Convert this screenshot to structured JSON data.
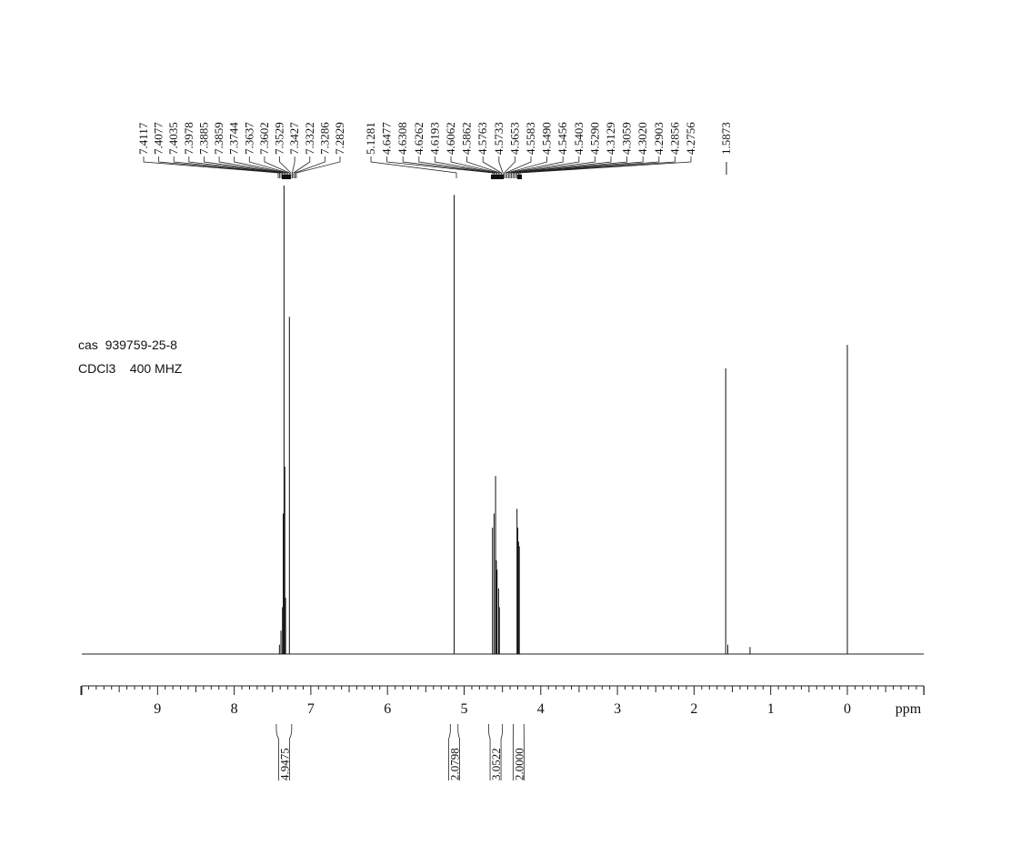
{
  "info": {
    "line1": "cas  939759-25-8",
    "line2": "CDCl3    400 MHZ"
  },
  "chart_data": {
    "type": "line",
    "title": "",
    "xlabel": "ppm",
    "ylabel": "",
    "xlim": [
      10.0,
      -1.0
    ],
    "x_reversed": true,
    "grid": false,
    "legend": "none",
    "xticks": [
      "9",
      "8",
      "7",
      "6",
      "5",
      "4",
      "3",
      "2",
      "1",
      "0"
    ],
    "peak_labels": {
      "group1": [
        "7.4117",
        "7.4077",
        "7.4035",
        "7.3978",
        "7.3885",
        "7.3859",
        "7.3744",
        "7.3637",
        "7.3602",
        "7.3529",
        "7.3427",
        "7.3322",
        "7.3286",
        "7.2829"
      ],
      "group2": [
        "5.1281",
        "4.6477",
        "4.6308",
        "4.6262",
        "4.6193",
        "4.6062",
        "4.5862",
        "4.5763",
        "4.5733",
        "4.5653",
        "4.5583",
        "4.5490",
        "4.5456",
        "4.5403",
        "4.5290",
        "4.3129",
        "4.3059",
        "4.3020",
        "4.2903",
        "4.2856",
        "4.2756"
      ],
      "group3": [
        "1.5873"
      ]
    },
    "integrals": [
      {
        "from": 7.45,
        "to": 7.25,
        "value": "4.9475"
      },
      {
        "from": 5.18,
        "to": 5.08,
        "value": "2.0798"
      },
      {
        "from": 4.68,
        "to": 4.5,
        "value": "3.0522"
      },
      {
        "from": 4.36,
        "to": 4.22,
        "value": "2.0000"
      }
    ],
    "peaks": [
      {
        "x": 7.41,
        "h": 0.02
      },
      {
        "x": 7.39,
        "h": 0.05
      },
      {
        "x": 7.37,
        "h": 0.1
      },
      {
        "x": 7.36,
        "h": 0.3
      },
      {
        "x": 7.35,
        "h": 1.0
      },
      {
        "x": 7.34,
        "h": 0.4
      },
      {
        "x": 7.33,
        "h": 0.12
      },
      {
        "x": 7.28,
        "h": 0.72
      },
      {
        "x": 5.13,
        "h": 0.98
      },
      {
        "x": 4.63,
        "h": 0.27
      },
      {
        "x": 4.61,
        "h": 0.3
      },
      {
        "x": 4.59,
        "h": 0.38
      },
      {
        "x": 4.58,
        "h": 0.2
      },
      {
        "x": 4.57,
        "h": 0.18
      },
      {
        "x": 4.55,
        "h": 0.14
      },
      {
        "x": 4.54,
        "h": 0.1
      },
      {
        "x": 4.31,
        "h": 0.31
      },
      {
        "x": 4.3,
        "h": 0.27
      },
      {
        "x": 4.29,
        "h": 0.24
      },
      {
        "x": 4.28,
        "h": 0.23
      },
      {
        "x": 1.587,
        "h": 0.61
      },
      {
        "x": 1.56,
        "h": 0.02
      },
      {
        "x": 1.27,
        "h": 0.015
      },
      {
        "x": 0.0,
        "h": 0.66
      }
    ]
  }
}
